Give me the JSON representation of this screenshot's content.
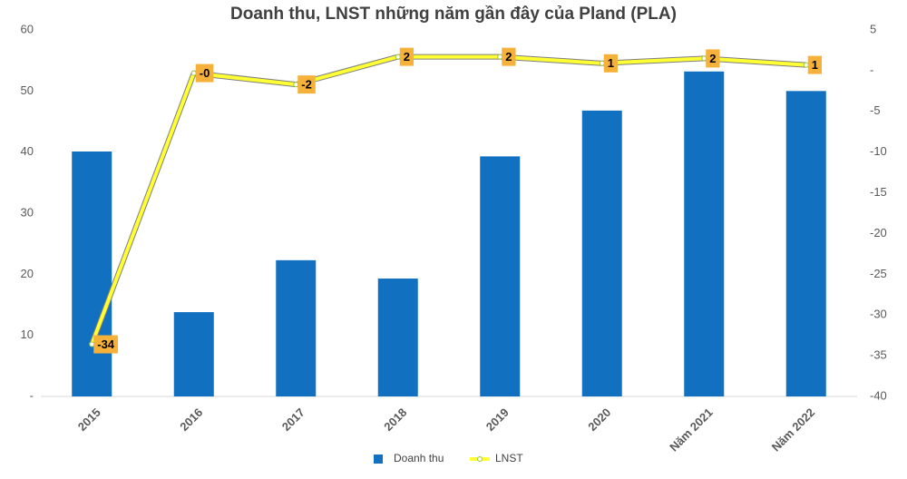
{
  "chart_data": {
    "type": "bar-line",
    "title": "Doanh thu, LNST những năm gần đây của Pland (PLA)",
    "categories": [
      "2015",
      "2016",
      "2017",
      "2018",
      "2019",
      "2020",
      "Năm 2021",
      "Năm 2022"
    ],
    "series": [
      {
        "name": "Doanh thu",
        "type": "bar",
        "color": "#1170c0",
        "values": [
          40.1,
          13.8,
          22.3,
          19.3,
          39.3,
          46.8,
          53.2,
          50.0
        ]
      },
      {
        "name": "LNST",
        "type": "line",
        "axis": "y2",
        "color": "#ffff33",
        "values": [
          -33.6,
          -0.3,
          -1.7,
          1.7,
          1.7,
          0.9,
          1.5,
          0.7
        ],
        "value_labels": [
          "-34",
          "-0",
          "-2",
          "2",
          "2",
          "1",
          "2",
          "1"
        ]
      }
    ],
    "ylim": [
      0,
      60
    ],
    "yticks": [
      {
        "value": 0,
        "label": "-"
      },
      10,
      20,
      30,
      40,
      50,
      60
    ],
    "y2lim": [
      -40,
      5
    ],
    "y2ticks": [
      -40,
      -35,
      -30,
      -25,
      -20,
      -15,
      -10,
      -5,
      {
        "value": 0,
        "label": "-"
      },
      5
    ],
    "legend": "bottom"
  }
}
